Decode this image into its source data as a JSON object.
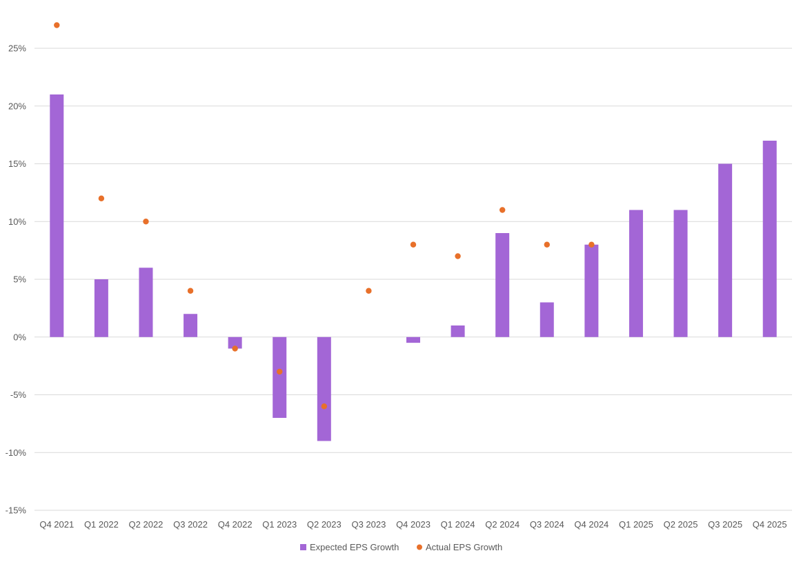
{
  "chart_data": {
    "type": "bar",
    "categories": [
      "Q4 2021",
      "Q1 2022",
      "Q2 2022",
      "Q3 2022",
      "Q4 2022",
      "Q1 2023",
      "Q2 2023",
      "Q3 2023",
      "Q4 2023",
      "Q1 2024",
      "Q2 2024",
      "Q3 2024",
      "Q4 2024",
      "Q1 2025",
      "Q2 2025",
      "Q3 2025",
      "Q4 2025"
    ],
    "series": [
      {
        "name": "Expected EPS Growth",
        "kind": "bar",
        "color": "#A366D6",
        "values": [
          21,
          5,
          6,
          2,
          -1,
          -7,
          -9,
          0,
          -0.5,
          1,
          9,
          3,
          8,
          11,
          11,
          15,
          17
        ]
      },
      {
        "name": "Actual EPS Growth",
        "kind": "scatter",
        "color": "#E8702A",
        "values": [
          27,
          12,
          10,
          4,
          -1,
          -3,
          -6,
          4,
          8,
          7,
          11,
          8,
          8,
          null,
          null,
          null,
          null
        ]
      }
    ],
    "y_ticks": [
      "25%",
      "20%",
      "15%",
      "10%",
      "5%",
      "0%",
      "-5%",
      "-10%",
      "-15%"
    ],
    "y_tick_values": [
      25,
      20,
      15,
      10,
      5,
      0,
      -5,
      -10,
      -15
    ],
    "ylim": [
      -15,
      25
    ],
    "grid": true,
    "legend_position": "bottom",
    "title": "",
    "xlabel": "",
    "ylabel": ""
  }
}
